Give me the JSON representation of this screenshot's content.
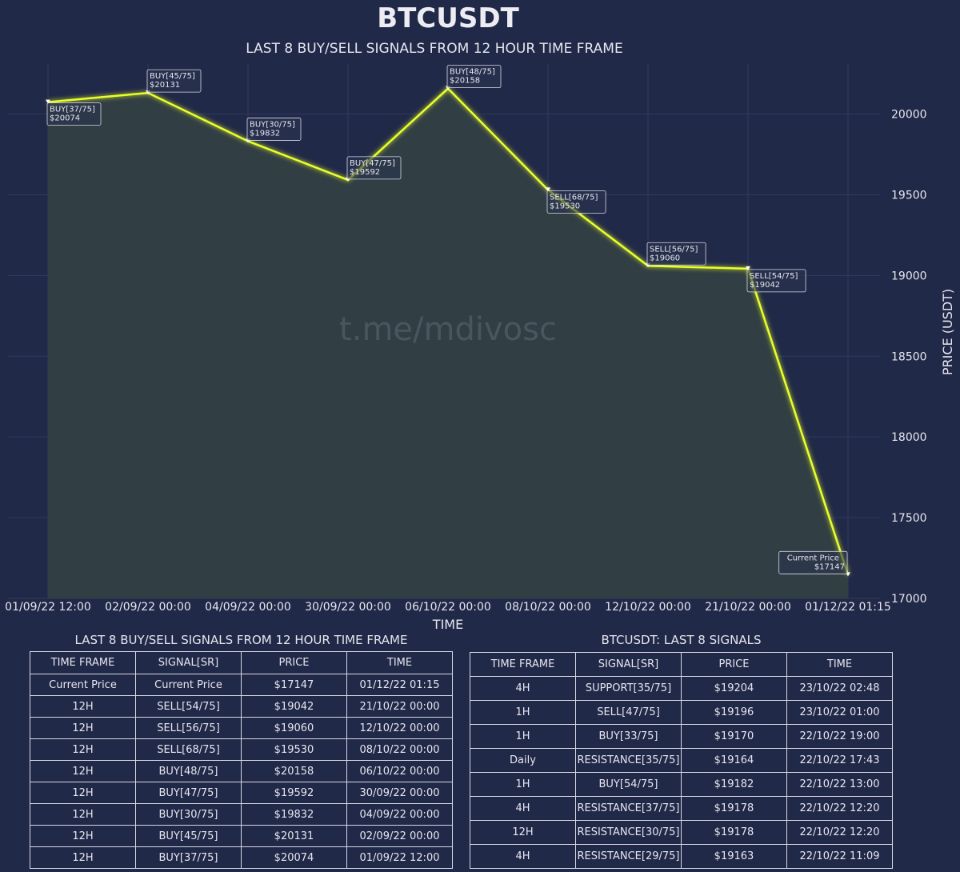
{
  "chart_data": {
    "type": "line",
    "title": "BTCUSDT",
    "subtitle": "LAST 8 BUY/SELL SIGNALS FROM 12 HOUR TIME FRAME",
    "xlabel": "TIME",
    "ylabel": "PRICE (USDT)",
    "watermark": "t.me/mdivosc",
    "ylim": [
      17000,
      20300
    ],
    "yticks": [
      17000,
      17500,
      18000,
      18500,
      19000,
      19500,
      20000
    ],
    "categories": [
      "01/09/22 12:00",
      "02/09/22 00:00",
      "04/09/22 00:00",
      "30/09/22 00:00",
      "06/10/22 00:00",
      "08/10/22 00:00",
      "12/10/22 00:00",
      "21/10/22 00:00",
      "01/12/22 01:15"
    ],
    "series": [
      {
        "values": [
          20074,
          20131,
          19832,
          19592,
          20158,
          19530,
          19060,
          19042,
          17147
        ],
        "labels": [
          [
            "BUY[37/75]",
            "$20074"
          ],
          [
            "BUY[45/75]",
            "$20131"
          ],
          [
            "BUY[30/75]",
            "$19832"
          ],
          [
            "BUY[47/75]",
            "$19592"
          ],
          [
            "BUY[48/75]",
            "$20158"
          ],
          [
            "SELL[68/75]",
            "$19530"
          ],
          [
            "SELL[56/75]",
            "$19060"
          ],
          [
            "SELL[54/75]",
            "$19042"
          ],
          [
            "Current Price",
            "$17147"
          ]
        ]
      }
    ],
    "colors": {
      "line": "#e8ff2a",
      "fill": "#333f43",
      "background": "#212948"
    },
    "grid": true
  },
  "left_table": {
    "title": "LAST 8 BUY/SELL SIGNALS FROM 12 HOUR TIME FRAME",
    "headers": [
      "TIME FRAME",
      "SIGNAL[SR]",
      "PRICE",
      "TIME"
    ],
    "rows": [
      [
        "Current Price",
        "Current Price",
        "$17147",
        "01/12/22 01:15"
      ],
      [
        "12H",
        "SELL[54/75]",
        "$19042",
        "21/10/22 00:00"
      ],
      [
        "12H",
        "SELL[56/75]",
        "$19060",
        "12/10/22 00:00"
      ],
      [
        "12H",
        "SELL[68/75]",
        "$19530",
        "08/10/22 00:00"
      ],
      [
        "12H",
        "BUY[48/75]",
        "$20158",
        "06/10/22 00:00"
      ],
      [
        "12H",
        "BUY[47/75]",
        "$19592",
        "30/09/22 00:00"
      ],
      [
        "12H",
        "BUY[30/75]",
        "$19832",
        "04/09/22 00:00"
      ],
      [
        "12H",
        "BUY[45/75]",
        "$20131",
        "02/09/22 00:00"
      ],
      [
        "12H",
        "BUY[37/75]",
        "$20074",
        "01/09/22 12:00"
      ]
    ]
  },
  "right_table": {
    "title": "BTCUSDT: LAST 8 SIGNALS",
    "headers": [
      "TIME FRAME",
      "SIGNAL[SR]",
      "PRICE",
      "TIME"
    ],
    "rows": [
      [
        "4H",
        "SUPPORT[35/75]",
        "$19204",
        "23/10/22 02:48"
      ],
      [
        "1H",
        "SELL[47/75]",
        "$19196",
        "23/10/22 01:00"
      ],
      [
        "1H",
        "BUY[33/75]",
        "$19170",
        "22/10/22 19:00"
      ],
      [
        "Daily",
        "RESISTANCE[35/75]",
        "$19164",
        "22/10/22 17:43"
      ],
      [
        "1H",
        "BUY[54/75]",
        "$19182",
        "22/10/22 13:00"
      ],
      [
        "4H",
        "RESISTANCE[37/75]",
        "$19178",
        "22/10/22 12:20"
      ],
      [
        "12H",
        "RESISTANCE[30/75]",
        "$19178",
        "22/10/22 12:20"
      ],
      [
        "4H",
        "RESISTANCE[29/75]",
        "$19163",
        "22/10/22 11:09"
      ]
    ]
  }
}
